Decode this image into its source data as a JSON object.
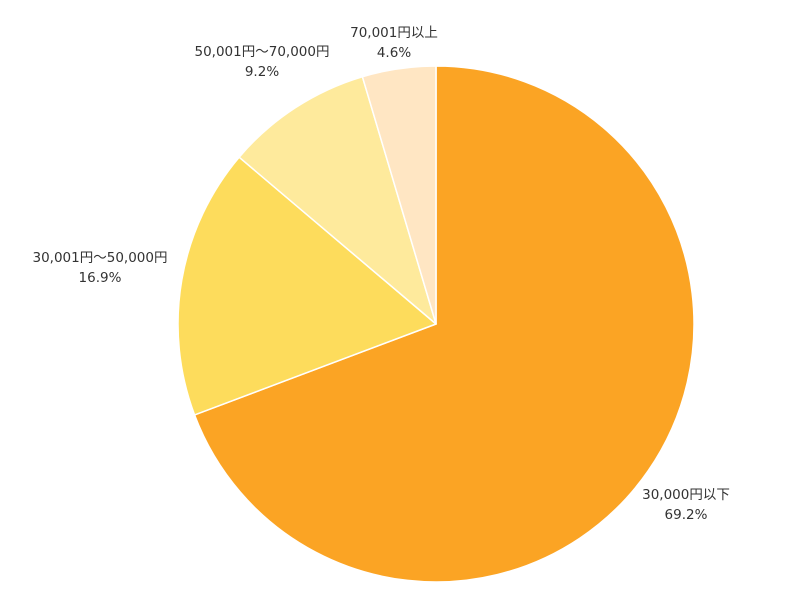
{
  "chart_data": {
    "type": "pie",
    "title": "",
    "start_angle_deg": 0,
    "direction": "clockwise",
    "slices": [
      {
        "label": "30,000円以下",
        "value": 69.2,
        "value_label": "69.2%",
        "color": "#FBA424"
      },
      {
        "label": "30,001円〜50,000円",
        "value": 16.9,
        "value_label": "16.9%",
        "color": "#FDDC5C"
      },
      {
        "label": "50,001円〜70,000円",
        "value": 9.2,
        "value_label": "9.2%",
        "color": "#FEEA9C"
      },
      {
        "label": "70,001円以上",
        "value": 4.6,
        "value_label": "4.6%",
        "color": "#FFE6C3"
      }
    ]
  }
}
